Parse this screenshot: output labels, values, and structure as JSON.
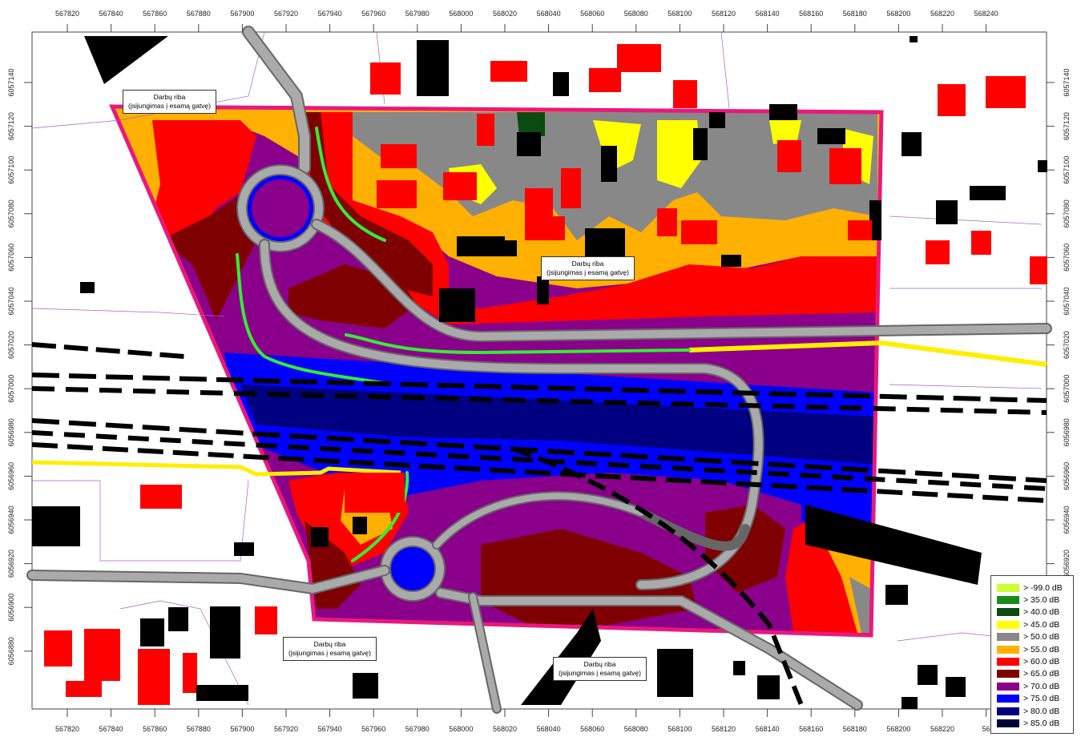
{
  "x_ticks": [
    "567820",
    "567840",
    "567860",
    "567880",
    "567900",
    "567920",
    "567940",
    "567960",
    "567980",
    "568000",
    "568020",
    "568040",
    "568060",
    "568080",
    "568100",
    "568120",
    "568140",
    "568160",
    "568180",
    "568200",
    "568220",
    "568240"
  ],
  "x_ticks_bottom": [
    "567820",
    "567840",
    "567860",
    "567880",
    "567900",
    "567920",
    "567940",
    "567960",
    "567980",
    "568000",
    "568020",
    "568040",
    "568060",
    "568080",
    "568100",
    "568120",
    "568140",
    "568160",
    "568180",
    "568200",
    "568220",
    "56"
  ],
  "y_ticks": [
    "6057140",
    "6057120",
    "6057100",
    "6057080",
    "6057060",
    "6057040",
    "6057020",
    "6057000",
    "6056980",
    "6056960",
    "6056940",
    "6056920",
    "6056900",
    "6056880"
  ],
  "callouts": {
    "top_left": {
      "line1": "Darbų riba",
      "line2": "(įsijungimas į esamą gatvę)"
    },
    "center": {
      "line1": "Darbų riba",
      "line2": "(įsijungimas į esamą gatvę)"
    },
    "bottom_left": {
      "line1": "Darbų riba",
      "line2": "(įsijungimas į esamą gatvę)"
    },
    "bottom_center": {
      "line1": "Darbų riba",
      "line2": "(įsijungimas į esamą gatvę)"
    }
  },
  "legend": {
    "items": [
      {
        "label": "> -99.0 dB",
        "color": "#ccff33"
      },
      {
        "label": ">  35.0 dB",
        "color": "#1a8c1a"
      },
      {
        "label": ">  40.0 dB",
        "color": "#0b4a10"
      },
      {
        "label": ">  45.0 dB",
        "color": "#ffff00"
      },
      {
        "label": ">  50.0 dB",
        "color": "#888888"
      },
      {
        "label": ">  55.0 dB",
        "color": "#ffb000"
      },
      {
        "label": ">  60.0 dB",
        "color": "#ff0000"
      },
      {
        "label": ">  65.0 dB",
        "color": "#7f0000"
      },
      {
        "label": ">  70.0 dB",
        "color": "#8a008a"
      },
      {
        "label": ">  75.0 dB",
        "color": "#0000ff"
      },
      {
        "label": ">  80.0 dB",
        "color": "#000080"
      },
      {
        "label": ">  85.0 dB",
        "color": "#000033"
      }
    ]
  },
  "colors": {
    "boundary": "#e8197d",
    "road": "#999999",
    "green_barrier": "#33ee33",
    "yellow_road": "#ffee00",
    "building_red": "#ff0000",
    "building_black": "#000000"
  }
}
